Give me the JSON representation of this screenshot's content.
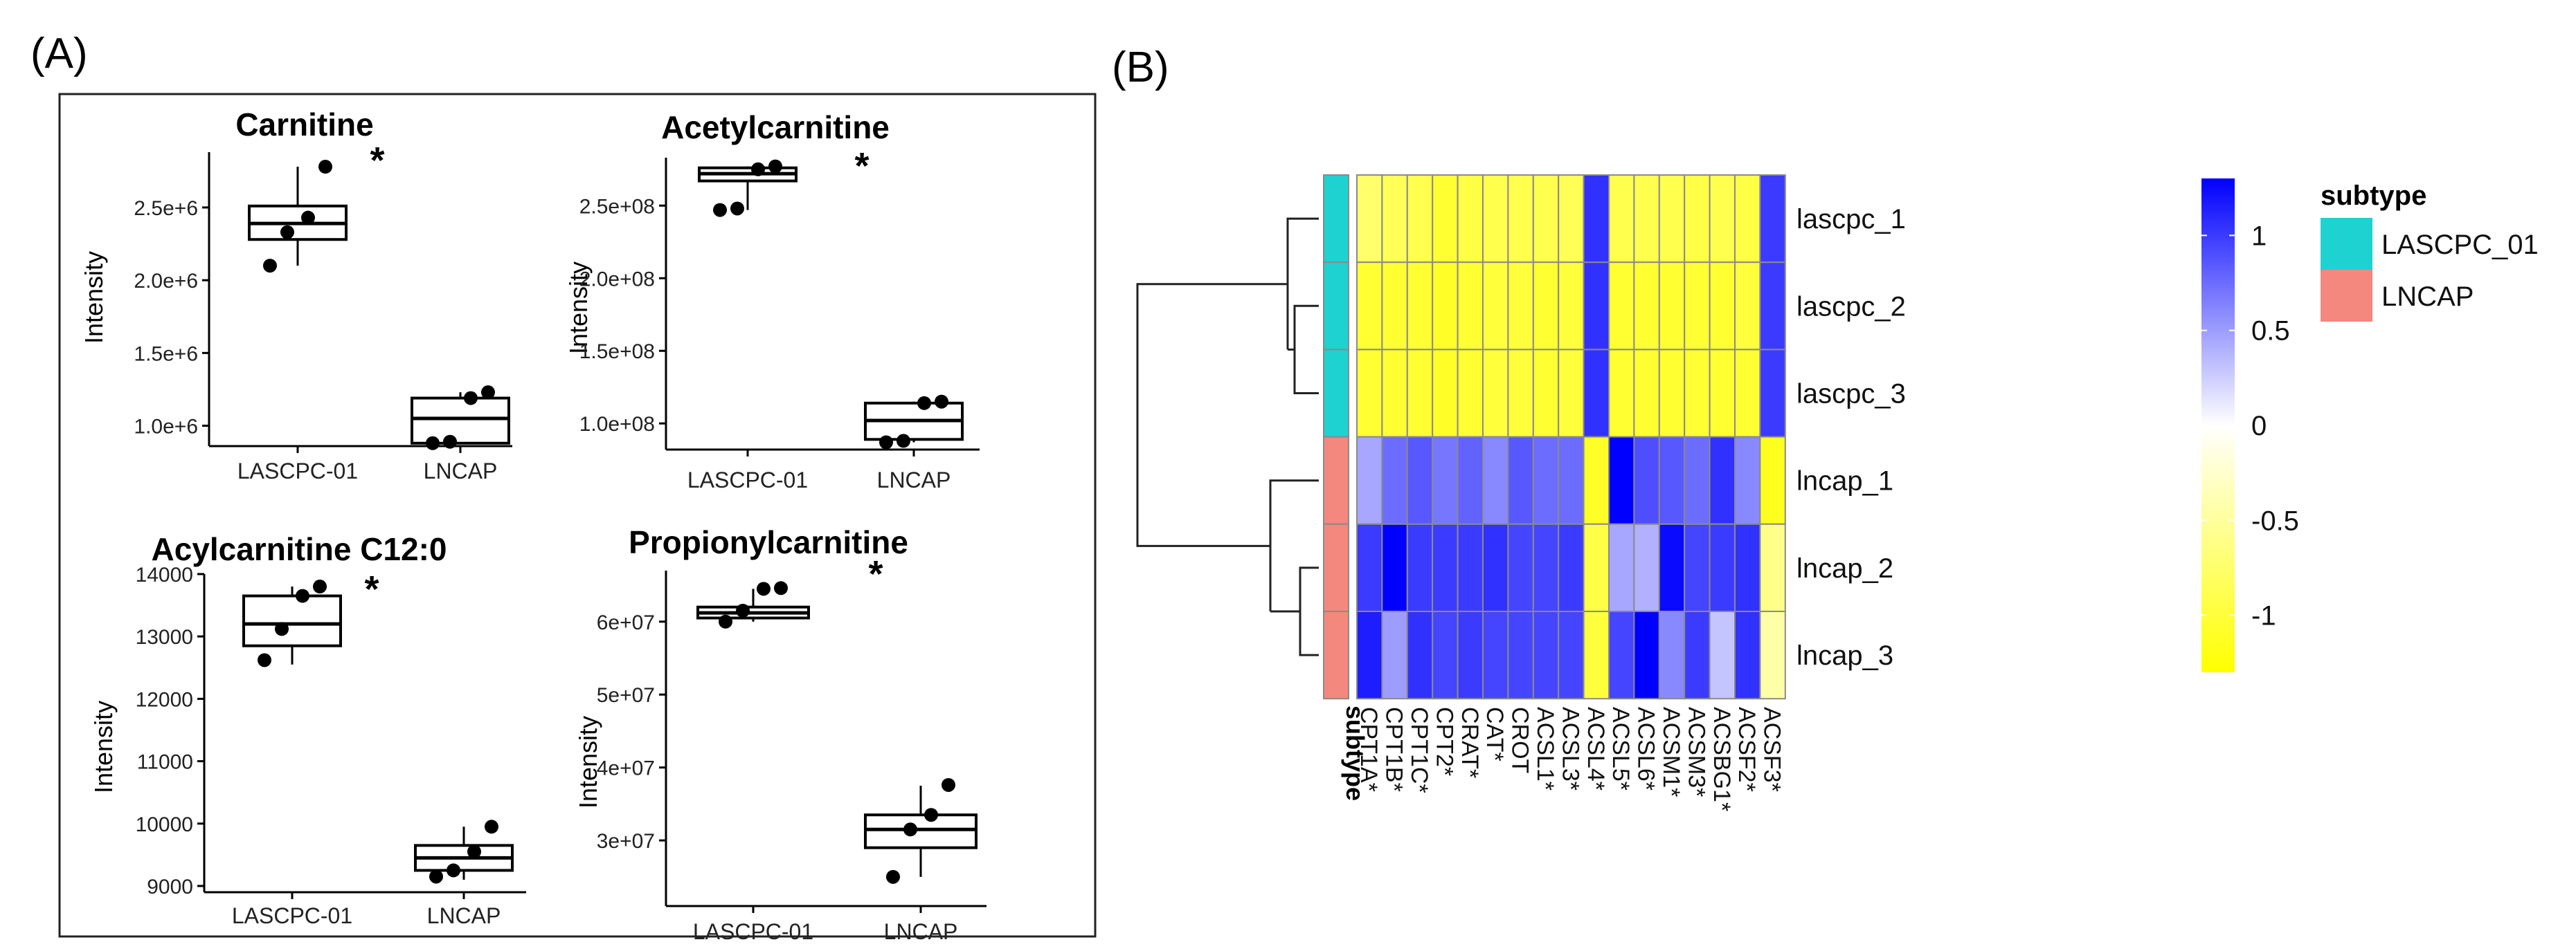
{
  "panels": {
    "a_label": "(A)",
    "b_label": "(B)"
  },
  "chart_data": [
    {
      "type": "box",
      "title": "Carnitine",
      "ylabel": "Intensity",
      "categories": [
        "LASCPC-01",
        "LNCAP"
      ],
      "ylim": [
        860000,
        2880000
      ],
      "yticks": [
        1000000,
        1500000,
        2000000,
        2500000
      ],
      "ytick_labels": [
        "1.0e+6",
        "1.5e+6",
        "2.0e+6",
        "2.5e+6"
      ],
      "boxes": [
        {
          "q1": 2280000,
          "median": 2390000,
          "q3": 2510000,
          "min": 2100000,
          "max": 2780000
        },
        {
          "q1": 880000,
          "median": 1050000,
          "q3": 1190000,
          "min": 880000,
          "max": 1230000
        }
      ],
      "points": [
        [
          2100000,
          2330000,
          2430000,
          2780000
        ],
        [
          880000,
          890000,
          1190000,
          1230000
        ]
      ],
      "annotation": "*"
    },
    {
      "type": "box",
      "title": "Acetylcarnitine",
      "ylabel": "Intensity",
      "categories": [
        "LASCPC-01",
        "LNCAP"
      ],
      "ylim": [
        82000000,
        283000000
      ],
      "yticks": [
        100000000,
        150000000,
        200000000,
        250000000
      ],
      "ytick_labels": [
        "1.0e+08",
        "1.5e+08",
        "2.0e+08",
        "2.5e+08"
      ],
      "boxes": [
        {
          "q1": 267000000,
          "median": 272000000,
          "q3": 276000000,
          "min": 247000000,
          "max": 277000000
        },
        {
          "q1": 89000000,
          "median": 102000000,
          "q3": 114000000,
          "min": 87000000,
          "max": 115000000
        }
      ],
      "points": [
        [
          247000000,
          248000000,
          275000000,
          277000000
        ],
        [
          87000000,
          88000000,
          114000000,
          115000000
        ]
      ],
      "annotation": "*"
    },
    {
      "type": "box",
      "title": "Acylcarnitine C12:0",
      "ylabel": "Intensity",
      "categories": [
        "LASCPC-01",
        "LNCAP"
      ],
      "ylim": [
        8900,
        14000
      ],
      "yticks": [
        9000,
        10000,
        11000,
        12000,
        13000,
        14000
      ],
      "ytick_labels": [
        "9000",
        "10000",
        "11000",
        "12000",
        "13000",
        "14000"
      ],
      "boxes": [
        {
          "q1": 12850,
          "median": 13200,
          "q3": 13650,
          "min": 12550,
          "max": 13800
        },
        {
          "q1": 9250,
          "median": 9450,
          "q3": 9650,
          "min": 9100,
          "max": 9950
        }
      ],
      "points": [
        [
          12620,
          13120,
          13650,
          13800
        ],
        [
          9150,
          9250,
          9550,
          9950
        ]
      ],
      "annotation": "*"
    },
    {
      "type": "box",
      "title": "Propionylcarnitine",
      "ylabel": "Intensity",
      "categories": [
        "LASCPC-01",
        "LNCAP"
      ],
      "ylim": [
        21000000,
        67000000
      ],
      "yticks": [
        30000000,
        40000000,
        50000000,
        60000000
      ],
      "ytick_labels": [
        "3e+07",
        "4e+07",
        "5e+07",
        "6e+07"
      ],
      "boxes": [
        {
          "q1": 60500000,
          "median": 61200000,
          "q3": 62000000,
          "min": 60000000,
          "max": 64500000
        },
        {
          "q1": 29000000,
          "median": 31500000,
          "q3": 33500000,
          "min": 25000000,
          "max": 37500000
        }
      ],
      "points": [
        [
          60000000,
          61500000,
          64500000,
          64600000
        ],
        [
          25000000,
          31500000,
          33500000,
          37600000
        ]
      ],
      "annotation": "*"
    },
    {
      "type": "heatmap",
      "rows": [
        "lascpc_1",
        "lascpc_2",
        "lascpc_3",
        "lncap_1",
        "lncap_2",
        "lncap_3"
      ],
      "cols": [
        "CPT1A*",
        "CPT1B*",
        "CPT1C*",
        "CPT2*",
        "CRAT*",
        "CAT*",
        "CROT",
        "ACSL1*",
        "ACSL3*",
        "ACSL4*",
        "ACSL5*",
        "ACSL6*",
        "ACSM1*",
        "ACSM3*",
        "ACSBG1*",
        "ACSF2*",
        "ACSF3*"
      ],
      "values": [
        [
          -0.75,
          -0.85,
          -0.9,
          -1.05,
          -0.95,
          -0.9,
          -0.9,
          -0.9,
          -0.85,
          1.05,
          -0.9,
          -0.9,
          -0.9,
          -0.95,
          -0.9,
          -0.95,
          1.0
        ],
        [
          -1.05,
          -1.05,
          -1.05,
          -1.1,
          -1.05,
          -1.0,
          -1.0,
          -1.05,
          -1.0,
          1.05,
          -1.05,
          -1.05,
          -1.05,
          -1.05,
          -1.05,
          -1.0,
          1.0
        ],
        [
          -1.05,
          -1.05,
          -1.05,
          -1.1,
          -1.05,
          -1.0,
          -1.0,
          -1.05,
          -1.0,
          1.05,
          -1.05,
          -1.05,
          -1.05,
          -1.05,
          -1.05,
          -1.05,
          1.0
        ],
        [
          0.45,
          0.75,
          0.85,
          0.7,
          0.8,
          0.6,
          0.85,
          0.75,
          0.75,
          -1.1,
          1.3,
          0.9,
          0.85,
          0.75,
          1.05,
          0.6,
          -1.15
        ],
        [
          1.0,
          1.3,
          1.0,
          1.0,
          1.0,
          1.05,
          0.95,
          0.95,
          1.0,
          -0.95,
          0.45,
          0.4,
          1.25,
          0.95,
          1.0,
          1.05,
          -0.6
        ],
        [
          1.15,
          0.5,
          1.05,
          0.95,
          1.0,
          0.95,
          0.95,
          0.95,
          0.95,
          -1.0,
          0.95,
          1.3,
          0.6,
          1.0,
          0.3,
          1.05,
          -0.45
        ]
      ],
      "subtype": [
        "LASCPC_01",
        "LASCPC_01",
        "LASCPC_01",
        "LNCAP",
        "LNCAP",
        "LNCAP"
      ],
      "subtype_label": "subtype",
      "legend_title": "subtype",
      "legend": [
        {
          "name": "LASCPC_01",
          "color": "#1ED2D2"
        },
        {
          "name": "LNCAP",
          "color": "#F4877E"
        }
      ],
      "colorbar": {
        "min": -1.3,
        "max": 1.3,
        "ticks": [
          1,
          0.5,
          0,
          -0.5,
          -1
        ],
        "tick_labels": [
          "1",
          "0.5",
          "0",
          "-0.5",
          "-1"
        ],
        "low_color": "#FFFF00",
        "mid_color": "#FFFFFF",
        "high_color": "#0000FF"
      }
    }
  ]
}
